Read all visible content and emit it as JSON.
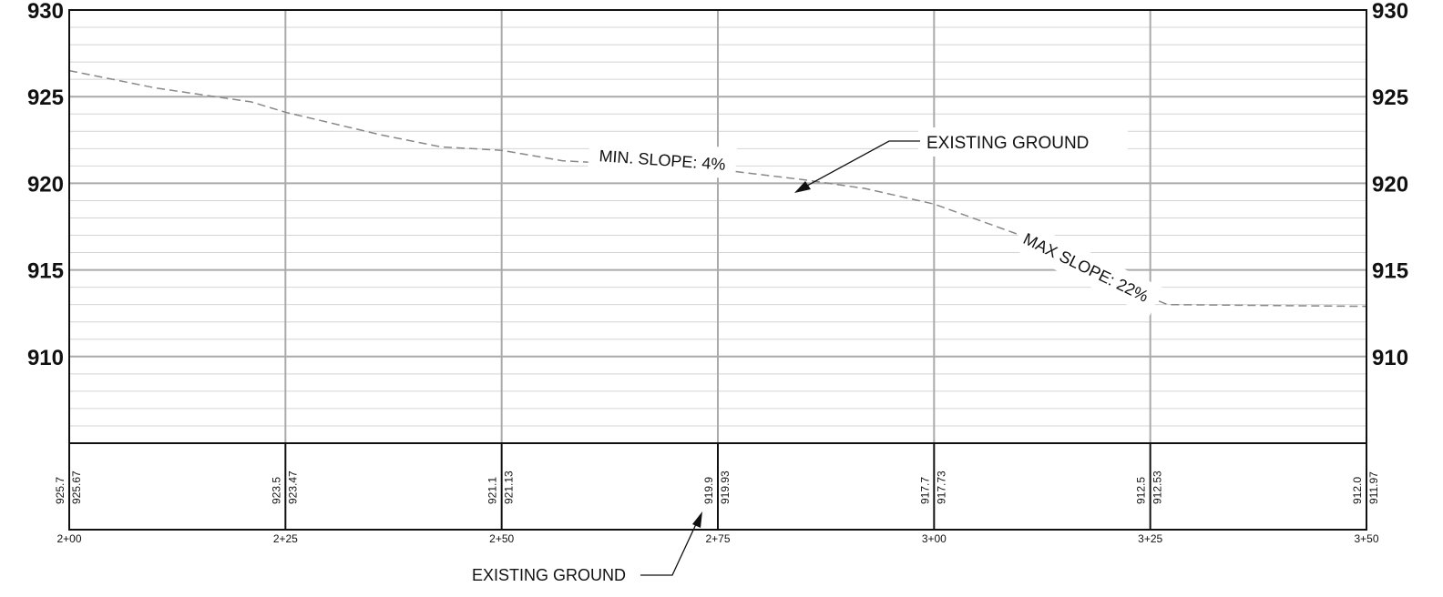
{
  "chart_data": {
    "type": "line",
    "xlabel": "",
    "ylabel": "",
    "x_range": [
      200,
      350
    ],
    "ylim": [
      905,
      930
    ],
    "y_ticks": [
      910,
      915,
      920,
      925,
      930
    ],
    "x_ticks": [
      {
        "station": 200,
        "label": "2+00"
      },
      {
        "station": 225,
        "label": "2+25"
      },
      {
        "station": 250,
        "label": "2+50"
      },
      {
        "station": 275,
        "label": "2+75"
      },
      {
        "station": 300,
        "label": "3+00"
      },
      {
        "station": 325,
        "label": "3+25"
      },
      {
        "station": 350,
        "label": "3+50"
      }
    ],
    "series": [
      {
        "style": "dashed",
        "color": "#888888",
        "x": [
          200,
          210,
          221,
          225,
          236,
          243,
          250,
          257,
          275,
          285,
          292,
          300,
          310,
          325,
          327,
          350
        ],
        "y": [
          926.5,
          925.5,
          924.7,
          924.1,
          922.8,
          922.1,
          921.9,
          921.3,
          920.8,
          920.2,
          919.7,
          918.8,
          917.0,
          913.4,
          913.0,
          912.9
        ]
      }
    ],
    "data_table": {
      "rows": [
        {
          "station": 200,
          "upper": "925.7",
          "lower": "925.67"
        },
        {
          "station": 225,
          "upper": "923.5",
          "lower": "923.47"
        },
        {
          "station": 250,
          "upper": "921.1",
          "lower": "921.13"
        },
        {
          "station": 275,
          "upper": "919.9",
          "lower": "919.93"
        },
        {
          "station": 300,
          "upper": "917.7",
          "lower": "917.73"
        },
        {
          "station": 325,
          "upper": "912.5",
          "lower": "912.53"
        },
        {
          "station": 350,
          "upper": "912.0",
          "lower": "911.97"
        }
      ]
    },
    "annotations": {
      "min_slope": "MIN. SLOPE: 4%",
      "max_slope": "MAX SLOPE: 22%",
      "existing_ground_top": "EXISTING GROUND",
      "existing_ground_bottom": "EXISTING GROUND"
    },
    "grid": true,
    "colors": {
      "major_grid": "#aaaaaa",
      "minor_grid": "#d4d4d4",
      "frame": "#111111",
      "profile": "#888888"
    }
  }
}
